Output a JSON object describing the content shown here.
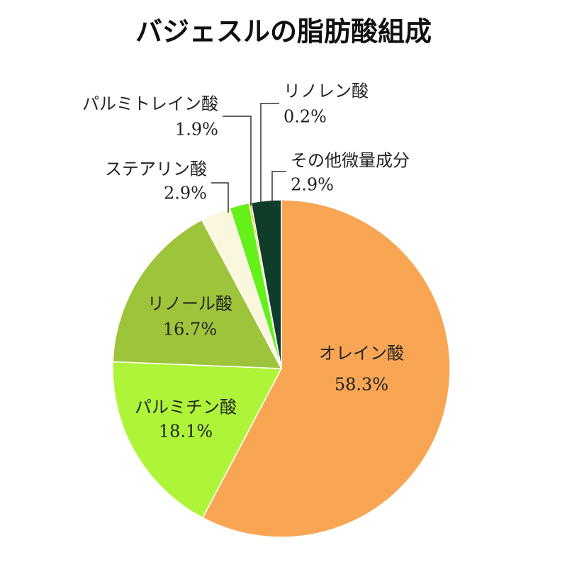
{
  "chart_data": {
    "type": "pie",
    "title": "バジェスルの脂肪酸組成",
    "categories": [
      "オレイン酸",
      "パルミチン酸",
      "リノール酸",
      "ステアリン酸",
      "パルミトレイン酸",
      "リノレン酸",
      "その他微量成分"
    ],
    "values": [
      58.3,
      18.1,
      16.7,
      2.9,
      1.9,
      0.2,
      2.9
    ],
    "value_labels": [
      "58.3%",
      "18.1%",
      "16.7%",
      "2.9%",
      "1.9%",
      "0.2%",
      "2.9%"
    ],
    "colors": [
      "#f9a654",
      "#aef53a",
      "#9dc43a",
      "#faf7dc",
      "#66f01a",
      "#f5b800",
      "#0f3d2a"
    ]
  }
}
